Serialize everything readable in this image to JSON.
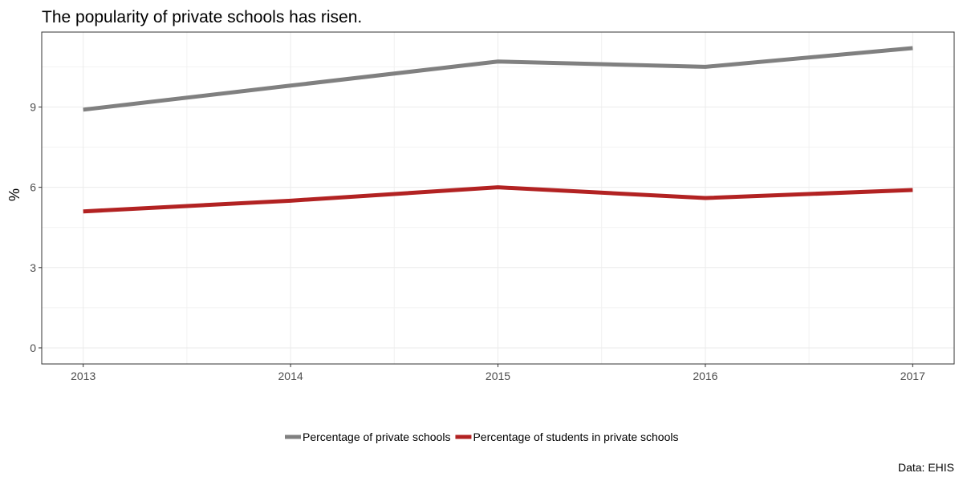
{
  "chart_data": {
    "type": "line",
    "title": "The popularity of private schools has risen.",
    "xlabel": "",
    "ylabel": "%",
    "caption": "Data: EHIS",
    "x": [
      2013,
      2014,
      2015,
      2016,
      2017
    ],
    "x_tick_labels": [
      "2013",
      "2014",
      "2015",
      "2016",
      "2017"
    ],
    "y_ticks": [
      0,
      3,
      6,
      9
    ],
    "y_tick_labels": [
      "0",
      "3",
      "6",
      "9"
    ],
    "xlim": [
      2012.8,
      2017.2
    ],
    "ylim": [
      -0.6,
      11.8
    ],
    "grid": true,
    "legend_position": "bottom",
    "series": [
      {
        "name": "Percentage of private schools",
        "color": "#808080",
        "values": [
          8.9,
          9.8,
          10.7,
          10.5,
          11.2
        ]
      },
      {
        "name": "Percentage of students in private schools",
        "color": "#b22222",
        "values": [
          5.1,
          5.5,
          6.0,
          5.6,
          5.9
        ]
      }
    ]
  }
}
